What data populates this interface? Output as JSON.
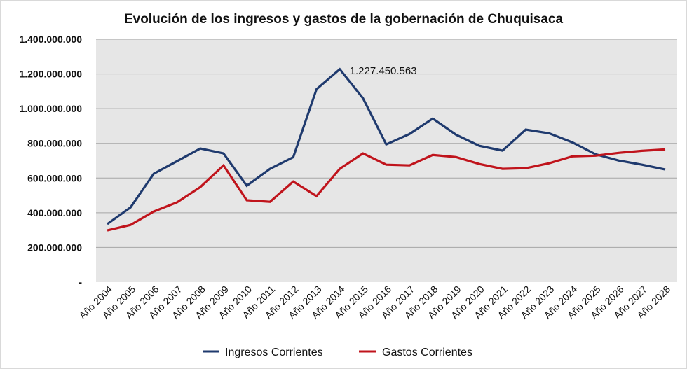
{
  "chart_data": {
    "type": "line",
    "title": "Evolución de los ingresos y gastos de la gobernación de Chuquisaca",
    "xlabel": "",
    "ylabel": "",
    "ylim": [
      0,
      1400000000
    ],
    "yticks": [
      0,
      200000000,
      400000000,
      600000000,
      800000000,
      1000000000,
      1200000000,
      1400000000
    ],
    "ytick_labels": [
      "-",
      "200.000.000",
      "400.000.000",
      "600.000.000",
      "800.000.000",
      "1.000.000.000",
      "1.200.000.000",
      "1.400.000.000"
    ],
    "grid": true,
    "legend_position": "bottom",
    "categories": [
      "Año 2004",
      "Año 2005",
      "Año 2006",
      "Año 2007",
      "Año 2008",
      "Año 2009",
      "Año 2010",
      "Año 2011",
      "Año 2012",
      "Año 2013",
      "Año 2014",
      "Año 2015",
      "Año 2016",
      "Año 2017",
      "Año 2018",
      "Año 2019",
      "Año 2020",
      "Año 2021",
      "Año 2022",
      "Año 2023",
      "Año 2024",
      "Año 2025",
      "Año 2026",
      "Año 2027",
      "Año 2028"
    ],
    "series": [
      {
        "name": "Ingresos Corrientes",
        "color": "#1f3a6e",
        "values": [
          335000000,
          431000000,
          625000000,
          697000000,
          770000000,
          742000000,
          556000000,
          653000000,
          720000000,
          1112000000,
          1227450563,
          1060000000,
          794000000,
          854000000,
          943000000,
          850000000,
          786000000,
          758000000,
          879000000,
          858000000,
          806000000,
          737000000,
          701000000,
          677000000,
          649000000
        ]
      },
      {
        "name": "Gastos Corrientes",
        "color": "#c0141c",
        "values": [
          298000000,
          330000000,
          407000000,
          460000000,
          548000000,
          673000000,
          472000000,
          463000000,
          580000000,
          496000000,
          653000000,
          742000000,
          677000000,
          673000000,
          733000000,
          721000000,
          681000000,
          653000000,
          657000000,
          685000000,
          725000000,
          729000000,
          745000000,
          757000000,
          765000000
        ]
      }
    ],
    "annotations": [
      {
        "series": "Ingresos Corrientes",
        "category": "Año 2014",
        "text": "1.227.450.563"
      }
    ],
    "plot_background": "#e6e6e6",
    "gridline_color": "#a6a6a6"
  }
}
